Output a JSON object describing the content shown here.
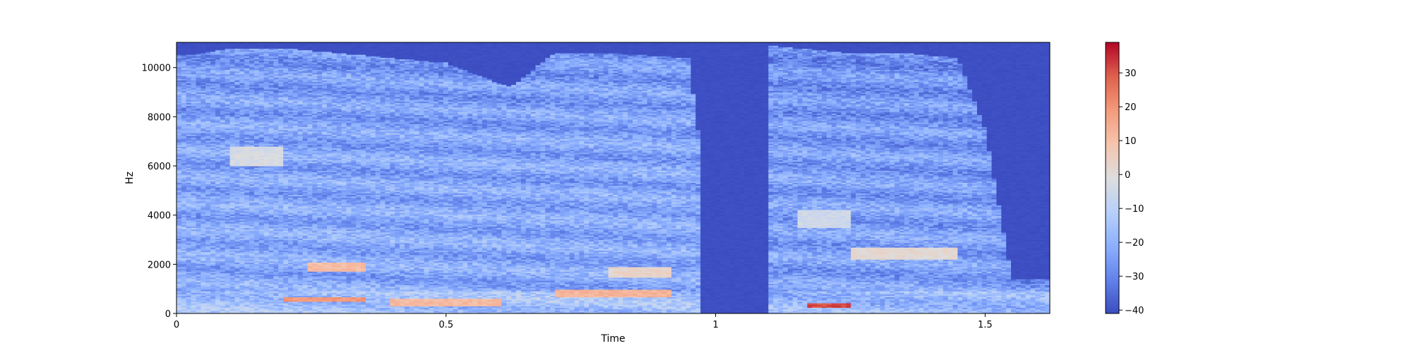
{
  "chart_data": {
    "type": "heatmap",
    "subtype": "spectrogram",
    "title": "",
    "xlabel": "Time",
    "ylabel": "Hz",
    "xlim": [
      0,
      1.62
    ],
    "ylim": [
      0,
      11025
    ],
    "x_ticks": [
      0,
      0.5,
      1,
      1.5
    ],
    "x_tick_labels": [
      "0",
      "0.5",
      "1",
      "1.5"
    ],
    "y_ticks": [
      0,
      2000,
      4000,
      6000,
      8000,
      10000
    ],
    "y_tick_labels": [
      "0",
      "2000",
      "4000",
      "6000",
      "8000",
      "10000"
    ],
    "colormap": "coolwarm",
    "colorbar": {
      "range": [
        -41,
        39
      ],
      "ticks": [
        -40,
        -30,
        -20,
        -10,
        0,
        10,
        20,
        30
      ],
      "tick_labels": [
        "−40",
        "−30",
        "−20",
        "−10",
        "0",
        "10",
        "20",
        "30"
      ]
    },
    "background_db": -41,
    "segments": [
      {
        "t_start": 0.0,
        "t_end": 0.97,
        "mean_db": -22
      },
      {
        "t_start": 1.1,
        "t_end": 1.62,
        "mean_db": -24
      }
    ],
    "energy_envelope": {
      "time": [
        0,
        0.05,
        0.1,
        0.2,
        0.35,
        0.5,
        0.62,
        0.7,
        0.8,
        0.95,
        1.0,
        1.05,
        1.1,
        1.15,
        1.25,
        1.35,
        1.45,
        1.5,
        1.55,
        1.62
      ],
      "max_freq_hz": [
        10500,
        10600,
        10800,
        10800,
        10500,
        10200,
        9200,
        10600,
        10600,
        10400,
        2000,
        0,
        10900,
        10800,
        10600,
        10600,
        10400,
        7500,
        1400,
        1400
      ]
    },
    "highlights": [
      {
        "t_start": 0.2,
        "t_end": 0.35,
        "f_low_hz": 500,
        "f_high_hz": 700,
        "db": 22
      },
      {
        "t_start": 0.24,
        "t_end": 0.35,
        "f_low_hz": 1700,
        "f_high_hz": 2100,
        "db": 14
      },
      {
        "t_start": 0.1,
        "t_end": 0.2,
        "f_low_hz": 6000,
        "f_high_hz": 6800,
        "db": 0
      },
      {
        "t_start": 0.4,
        "t_end": 0.6,
        "f_low_hz": 300,
        "f_high_hz": 600,
        "db": 14
      },
      {
        "t_start": 0.7,
        "t_end": 0.92,
        "f_low_hz": 700,
        "f_high_hz": 1000,
        "db": 16
      },
      {
        "t_start": 0.8,
        "t_end": 0.92,
        "f_low_hz": 1500,
        "f_high_hz": 1900,
        "db": 6
      },
      {
        "t_start": 1.17,
        "t_end": 1.25,
        "f_low_hz": 250,
        "f_high_hz": 450,
        "db": 34
      },
      {
        "t_start": 1.25,
        "t_end": 1.45,
        "f_low_hz": 2200,
        "f_high_hz": 2700,
        "db": 4
      },
      {
        "t_start": 1.15,
        "t_end": 1.25,
        "f_low_hz": 3500,
        "f_high_hz": 4200,
        "db": -2
      }
    ]
  }
}
